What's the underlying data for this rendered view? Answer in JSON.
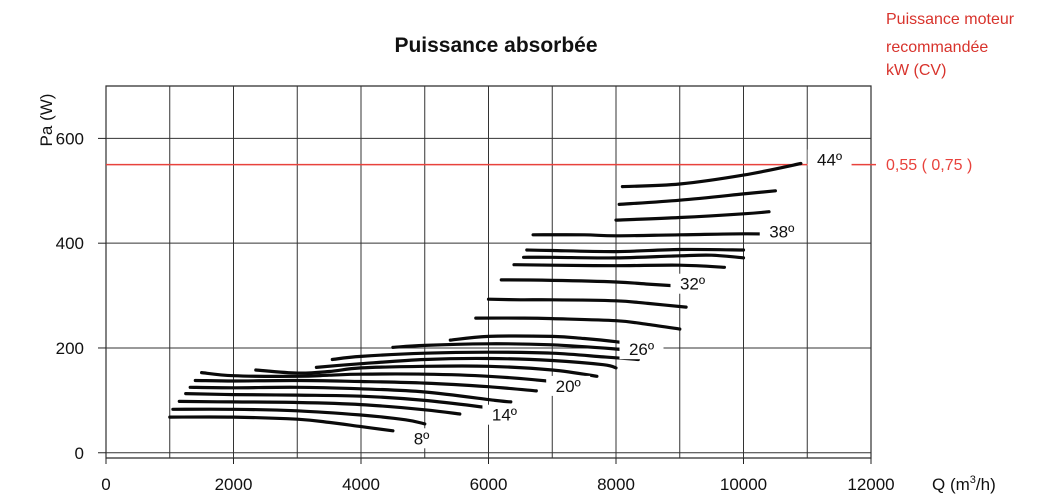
{
  "chart_data": {
    "type": "line",
    "title": "Puissance absorbée",
    "ylabel": "Pa (W)",
    "xlabel_main": "Q (m",
    "xlabel_sup": "3",
    "xlabel_end": "/h)",
    "xlim": [
      0,
      12000
    ],
    "ylim": [
      -10,
      700
    ],
    "x_ticks": [
      0,
      2000,
      4000,
      6000,
      8000,
      10000,
      12000
    ],
    "x_tick_labels": [
      "0",
      "2000",
      "4000",
      "6000",
      "8000",
      "10000",
      "12000"
    ],
    "y_ticks": [
      0,
      200,
      400,
      600
    ],
    "y_tick_labels": [
      "0",
      "200",
      "400",
      "600"
    ],
    "x_grid": [
      0,
      1000,
      2000,
      3000,
      4000,
      5000,
      6000,
      7000,
      8000,
      9000,
      10000,
      11000,
      12000
    ],
    "y_grid": [
      0,
      200,
      400,
      600
    ],
    "grid": true,
    "reference_line": {
      "y": 550,
      "color": "#e8423c",
      "label": "0,55 ( 0,75 )",
      "header_lines": [
        "Puissance moteur",
        "recommandée",
        "kW (CV)"
      ]
    },
    "angle_labels": [
      {
        "text": "8º",
        "x": 4950,
        "y": 20
      },
      {
        "text": "14º",
        "x": 6250,
        "y": 65
      },
      {
        "text": "20º",
        "x": 7250,
        "y": 120
      },
      {
        "text": "26º",
        "x": 8400,
        "y": 190
      },
      {
        "text": "32º",
        "x": 9200,
        "y": 315
      },
      {
        "text": "38º",
        "x": 10600,
        "y": 415
      },
      {
        "text": "44º",
        "x": 11350,
        "y": 552
      }
    ],
    "series": [
      {
        "values": [
          [
            1000,
            68
          ],
          [
            2000,
            68
          ],
          [
            3000,
            64
          ],
          [
            3500,
            58
          ],
          [
            4000,
            50
          ],
          [
            4500,
            42
          ]
        ]
      },
      {
        "values": [
          [
            1050,
            83
          ],
          [
            2000,
            83
          ],
          [
            3000,
            80
          ],
          [
            4000,
            72
          ],
          [
            4700,
            63
          ],
          [
            5000,
            55
          ]
        ]
      },
      {
        "values": [
          [
            1150,
            98
          ],
          [
            2000,
            97
          ],
          [
            3000,
            96
          ],
          [
            4000,
            92
          ],
          [
            5000,
            82
          ],
          [
            5550,
            74
          ]
        ]
      },
      {
        "values": [
          [
            1250,
            113
          ],
          [
            2000,
            111
          ],
          [
            3000,
            110
          ],
          [
            4000,
            108
          ],
          [
            5000,
            100
          ],
          [
            6000,
            86
          ]
        ]
      },
      {
        "values": [
          [
            1320,
            125
          ],
          [
            2000,
            124
          ],
          [
            3000,
            125
          ],
          [
            4000,
            122
          ],
          [
            5000,
            116
          ],
          [
            6100,
            100
          ],
          [
            6350,
            97
          ]
        ]
      },
      {
        "values": [
          [
            1400,
            138
          ],
          [
            2000,
            137
          ],
          [
            3000,
            138
          ],
          [
            4000,
            136
          ],
          [
            5000,
            133
          ],
          [
            6000,
            126
          ],
          [
            6750,
            118
          ]
        ]
      },
      {
        "values": [
          [
            1500,
            153
          ],
          [
            2000,
            147
          ],
          [
            3000,
            146
          ],
          [
            3500,
            148
          ],
          [
            4000,
            150
          ],
          [
            5000,
            150
          ],
          [
            6000,
            146
          ],
          [
            7000,
            136
          ],
          [
            7300,
            130
          ]
        ]
      },
      {
        "values": [
          [
            2350,
            158
          ],
          [
            3000,
            152
          ],
          [
            3500,
            155
          ],
          [
            4000,
            162
          ],
          [
            5000,
            165
          ],
          [
            6000,
            165
          ],
          [
            7000,
            158
          ],
          [
            7700,
            146
          ]
        ]
      },
      {
        "values": [
          [
            3300,
            163
          ],
          [
            4000,
            170
          ],
          [
            5000,
            178
          ],
          [
            6000,
            180
          ],
          [
            7000,
            176
          ],
          [
            7800,
            168
          ],
          [
            8000,
            162
          ]
        ]
      },
      {
        "values": [
          [
            3550,
            178
          ],
          [
            4000,
            184
          ],
          [
            5000,
            190
          ],
          [
            6000,
            192
          ],
          [
            7000,
            190
          ],
          [
            7800,
            183
          ],
          [
            8350,
            178
          ]
        ]
      },
      {
        "values": [
          [
            4500,
            201
          ],
          [
            5000,
            205
          ],
          [
            6000,
            208
          ],
          [
            7000,
            206
          ],
          [
            8000,
            198
          ],
          [
            8350,
            193
          ]
        ]
      },
      {
        "values": [
          [
            5400,
            215
          ],
          [
            6000,
            222
          ],
          [
            7000,
            222
          ],
          [
            7500,
            218
          ],
          [
            8000,
            212
          ],
          [
            8600,
            202
          ]
        ]
      },
      {
        "values": [
          [
            5800,
            257
          ],
          [
            6500,
            257
          ],
          [
            7000,
            256
          ],
          [
            8000,
            252
          ],
          [
            8500,
            245
          ],
          [
            9000,
            236
          ]
        ]
      },
      {
        "values": [
          [
            6000,
            293
          ],
          [
            6500,
            292
          ],
          [
            7000,
            292
          ],
          [
            8000,
            290
          ],
          [
            8500,
            285
          ],
          [
            9100,
            278
          ]
        ]
      },
      {
        "values": [
          [
            6200,
            330
          ],
          [
            7000,
            329
          ],
          [
            8000,
            326
          ],
          [
            8500,
            322
          ],
          [
            9000,
            318
          ],
          [
            9500,
            315
          ]
        ]
      },
      {
        "values": [
          [
            6400,
            359
          ],
          [
            7000,
            358
          ],
          [
            8000,
            357
          ],
          [
            9000,
            358
          ],
          [
            9700,
            354
          ]
        ]
      },
      {
        "values": [
          [
            6550,
            373
          ],
          [
            7000,
            373
          ],
          [
            8000,
            372
          ],
          [
            9000,
            376
          ],
          [
            9500,
            377
          ],
          [
            10000,
            372
          ]
        ]
      },
      {
        "values": [
          [
            6600,
            387
          ],
          [
            7000,
            386
          ],
          [
            8000,
            384
          ],
          [
            9000,
            388
          ],
          [
            10000,
            387
          ]
        ]
      },
      {
        "values": [
          [
            6700,
            416
          ],
          [
            7500,
            416
          ],
          [
            8000,
            414
          ],
          [
            9000,
            416
          ],
          [
            10000,
            418
          ],
          [
            10600,
            417
          ]
        ]
      },
      {
        "values": [
          [
            8000,
            444
          ],
          [
            9000,
            449
          ],
          [
            10000,
            456
          ],
          [
            10400,
            460
          ]
        ]
      },
      {
        "values": [
          [
            8050,
            474
          ],
          [
            9000,
            482
          ],
          [
            10000,
            494
          ],
          [
            10500,
            500
          ]
        ]
      },
      {
        "values": [
          [
            8100,
            508
          ],
          [
            9000,
            513
          ],
          [
            10000,
            530
          ],
          [
            10900,
            552
          ]
        ]
      }
    ]
  }
}
